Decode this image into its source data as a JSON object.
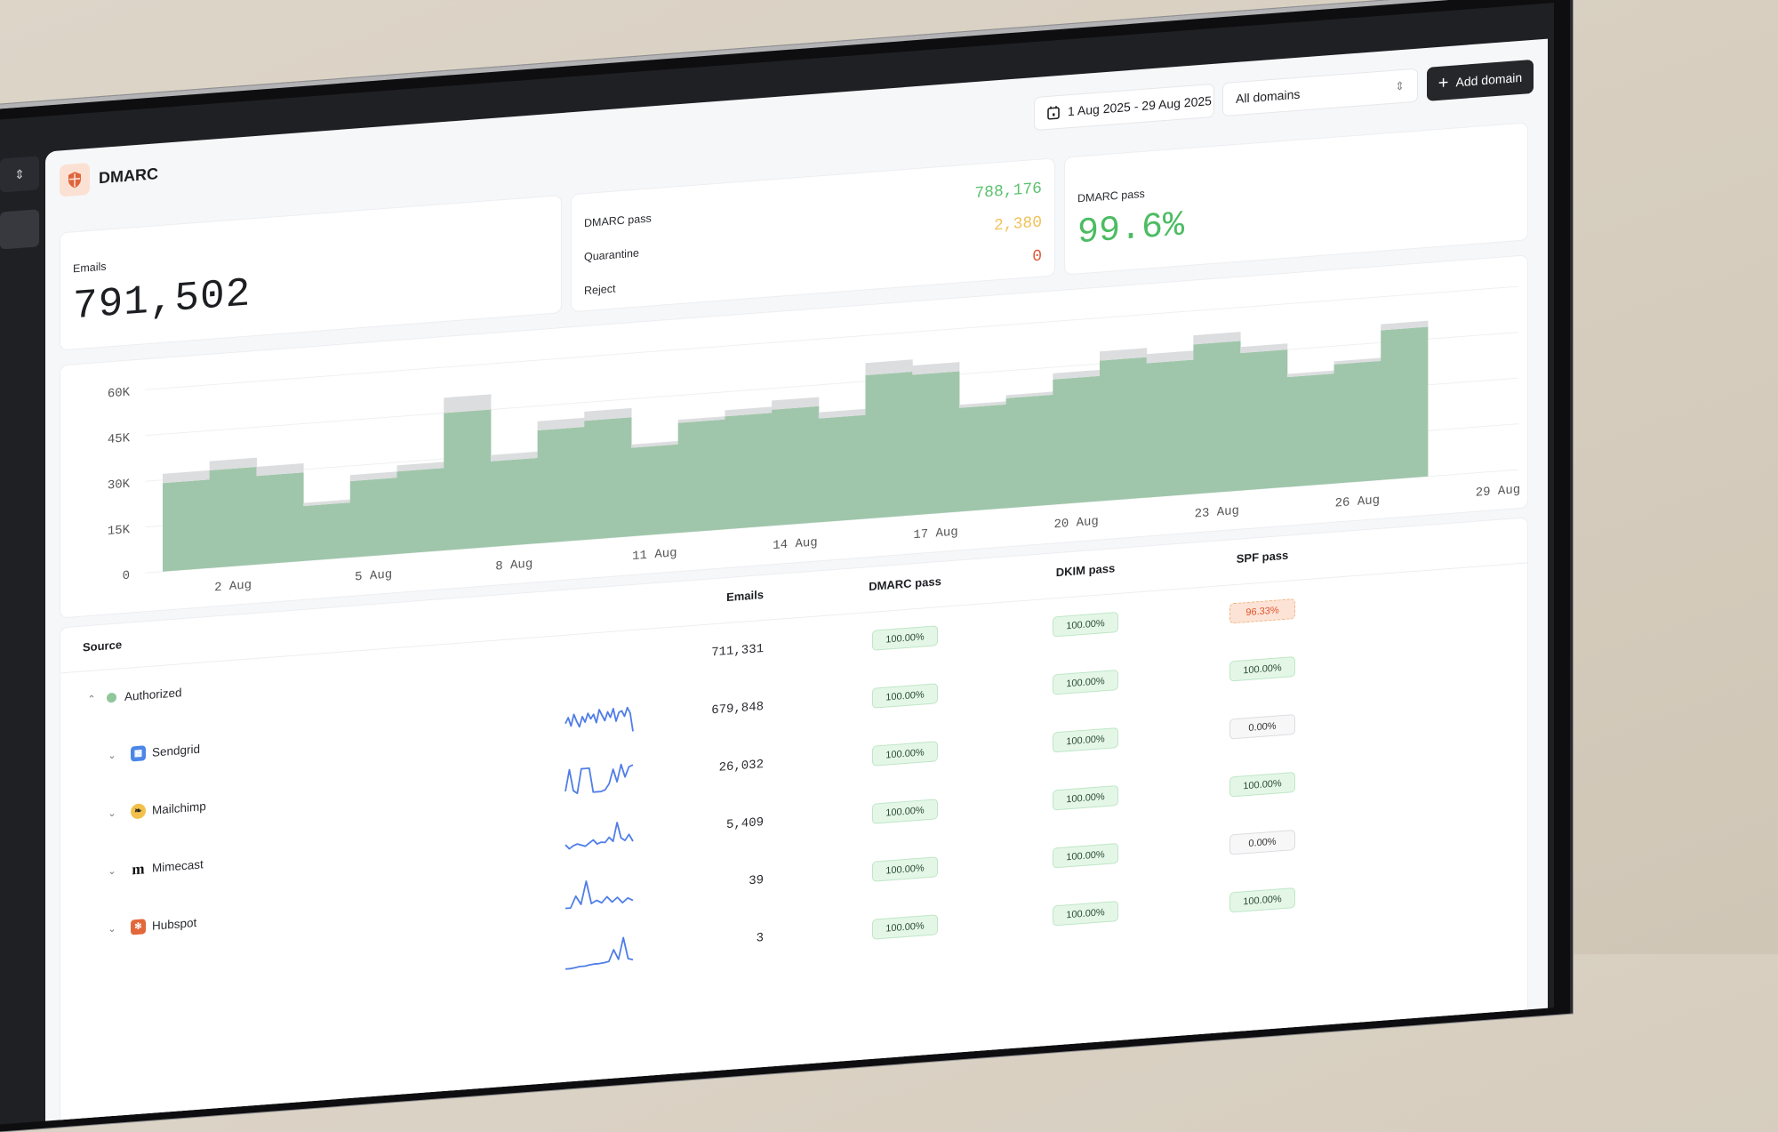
{
  "sidebar": {
    "switcher_icon": "chevron-up-down-icon"
  },
  "header": {
    "title": "DMARC",
    "icon": "shield-icon"
  },
  "toolbar": {
    "date_range": "1 Aug 2025 - 29 Aug 2025",
    "domain_select": "All domains",
    "add_domain": "Add domain"
  },
  "stats": {
    "emails": {
      "label": "Emails",
      "value": "791,502"
    },
    "breakdown": [
      {
        "label": "DMARC pass",
        "value": "788,176",
        "color": "#5cc16f"
      },
      {
        "label": "Quarantine",
        "value": "2,380",
        "color": "#f0c25a"
      },
      {
        "label": "Reject",
        "value": "0",
        "color": "#e05a3a"
      }
    ],
    "pass_rate": {
      "label": "DMARC pass",
      "value": "99.6%",
      "color": "#4cbc62"
    }
  },
  "chart_data": {
    "type": "bar",
    "stacked": true,
    "categories": [
      "1 Aug",
      "2 Aug",
      "3 Aug",
      "4 Aug",
      "5 Aug",
      "6 Aug",
      "7 Aug",
      "8 Aug",
      "9 Aug",
      "10 Aug",
      "11 Aug",
      "12 Aug",
      "13 Aug",
      "14 Aug",
      "15 Aug",
      "16 Aug",
      "17 Aug",
      "18 Aug",
      "19 Aug",
      "20 Aug",
      "21 Aug",
      "22 Aug",
      "23 Aug",
      "24 Aug",
      "25 Aug",
      "26 Aug",
      "27 Aug"
    ],
    "series": [
      {
        "color": "#9fc6aa",
        "values": [
          29000,
          32000,
          29000,
          18000,
          25000,
          27000,
          45000,
          28000,
          37000,
          39000,
          29000,
          36000,
          37000,
          38000,
          34000,
          47000,
          46000,
          34000,
          36000,
          41000,
          46000,
          44000,
          49000,
          45000,
          36000,
          39000,
          49000
        ]
      },
      {
        "color": "#dcdddf",
        "values": [
          3000,
          3000,
          3000,
          1000,
          2000,
          2000,
          5000,
          2000,
          3000,
          3000,
          1000,
          1000,
          2000,
          3000,
          2000,
          4000,
          3000,
          1000,
          1000,
          2000,
          3000,
          3000,
          3000,
          2000,
          1000,
          1000,
          2000
        ]
      }
    ],
    "y_ticks": [
      "0",
      "15K",
      "30K",
      "45K",
      "60K"
    ],
    "ylim": [
      0,
      60000
    ],
    "x_tick_labels": [
      "2 Aug",
      "5 Aug",
      "8 Aug",
      "11 Aug",
      "14 Aug",
      "17 Aug",
      "20 Aug",
      "23 Aug",
      "26 Aug",
      "29 Aug"
    ],
    "grid": true,
    "title": "",
    "xlabel": "",
    "ylabel": ""
  },
  "table": {
    "headers": {
      "source": "Source",
      "emails": "Emails",
      "dmarc": "DMARC pass",
      "dkim": "DKIM pass",
      "spf": "SPF pass"
    },
    "spark_color": "#4f7de8",
    "rows": [
      {
        "name": "Authorized",
        "level": 0,
        "expanded": true,
        "icon": "green-dot-icon",
        "emails": "711,331",
        "dmarc": "100.00%",
        "dkim": "100.00%",
        "spf": "96.33%",
        "spf_status": "warn",
        "spark": []
      },
      {
        "name": "Sendgrid",
        "level": 1,
        "icon": "sendgrid-icon",
        "emails": "679,848",
        "dmarc": "100.00%",
        "dkim": "100.00%",
        "spf": "100.00%",
        "spf_status": "good",
        "spark": [
          0.5,
          0.7,
          0.4,
          0.8,
          0.55,
          0.35,
          0.7,
          0.5,
          0.8,
          0.6,
          0.75,
          0.45,
          0.9,
          0.7,
          0.5,
          0.8,
          0.6,
          0.9,
          0.45,
          0.75,
          0.8,
          0.6,
          0.9,
          0.7,
          0.05
        ]
      },
      {
        "name": "Mailchimp",
        "level": 1,
        "icon": "mailchimp-icon",
        "emails": "26,032",
        "dmarc": "100.00%",
        "dkim": "100.00%",
        "spf": "0.00%",
        "spf_status": "zero",
        "spark": [
          0.15,
          0.9,
          0.15,
          0.05,
          0.9,
          0.9,
          0.9,
          0.05,
          0.05,
          0.05,
          0.1,
          0.3,
          0.8,
          0.35,
          0.95,
          0.5,
          0.85,
          0.9
        ]
      },
      {
        "name": "Mimecast",
        "level": 1,
        "icon": "mimecast-icon",
        "emails": "5,409",
        "dmarc": "100.00%",
        "dkim": "100.00%",
        "spf": "100.00%",
        "spf_status": "good",
        "spark": [
          0.3,
          0.15,
          0.25,
          0.3,
          0.25,
          0.2,
          0.3,
          0.4,
          0.25,
          0.3,
          0.28,
          0.45,
          0.3,
          0.95,
          0.4,
          0.3,
          0.5,
          0.25
        ]
      },
      {
        "name": "Hubspot",
        "level": 1,
        "icon": "hubspot-icon",
        "emails": "39",
        "dmarc": "100.00%",
        "dkim": "100.00%",
        "spf": "0.00%",
        "spf_status": "zero",
        "spark": [
          0.1,
          0.1,
          0.5,
          0.2,
          1.0,
          0.2,
          0.3,
          0.2,
          0.4,
          0.2,
          0.35,
          0.15,
          0.3,
          0.2
        ]
      },
      {
        "name": "",
        "level": 1,
        "icon": "",
        "emails": "3",
        "dmarc": "100.00%",
        "dkim": "100.00%",
        "spf": "100.00%",
        "spf_status": "good",
        "spark": [
          0,
          0,
          0.02,
          0.05,
          0.05,
          0.08,
          0.1,
          0.1,
          0.12,
          0.15,
          0.55,
          0.2,
          0.95,
          0.2,
          0.15
        ]
      }
    ]
  }
}
